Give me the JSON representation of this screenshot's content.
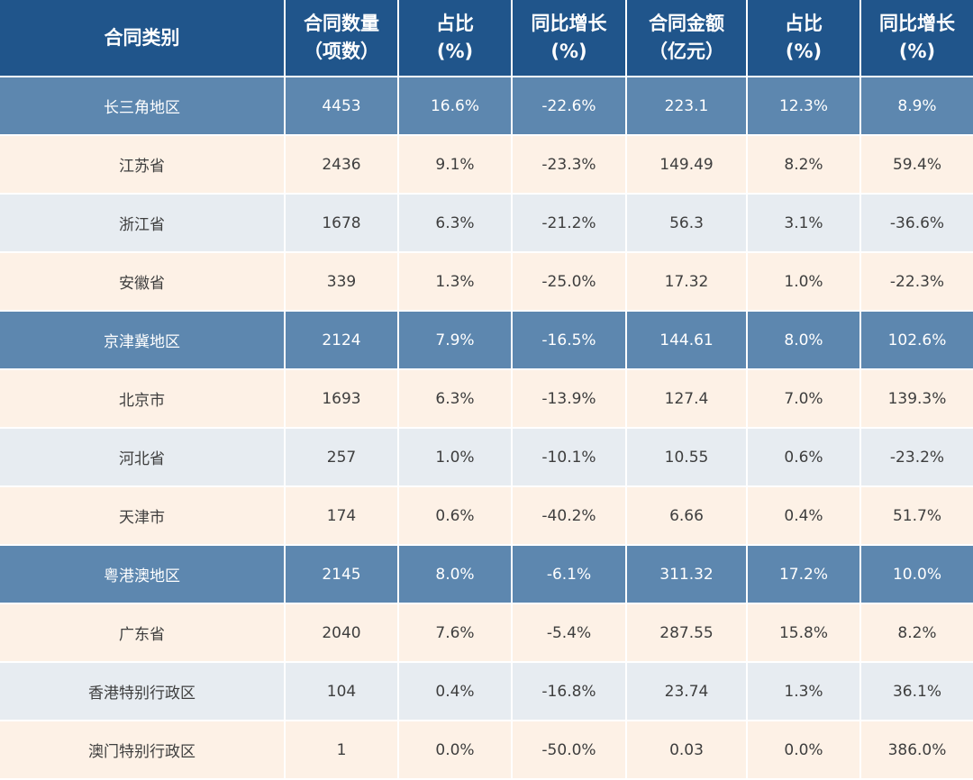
{
  "chart_data": {
    "type": "table",
    "headers": [
      [
        "合同类别"
      ],
      [
        "合同数量",
        "（项数）"
      ],
      [
        "占比",
        "(%)"
      ],
      [
        "同比增长",
        "(%)"
      ],
      [
        "合同金额",
        "（亿元）"
      ],
      [
        "占比",
        "(%)"
      ],
      [
        "同比增长",
        "(%)"
      ]
    ],
    "rows": [
      {
        "style": "region",
        "cells": [
          "长三角地区",
          "4453",
          "16.6%",
          "-22.6%",
          "223.1",
          "12.3%",
          "8.9%"
        ]
      },
      {
        "style": "warm",
        "cells": [
          "江苏省",
          "2436",
          "9.1%",
          "-23.3%",
          "149.49",
          "8.2%",
          "59.4%"
        ]
      },
      {
        "style": "cool",
        "cells": [
          "浙江省",
          "1678",
          "6.3%",
          "-21.2%",
          "56.3",
          "3.1%",
          "-36.6%"
        ]
      },
      {
        "style": "warm",
        "cells": [
          "安徽省",
          "339",
          "1.3%",
          "-25.0%",
          "17.32",
          "1.0%",
          "-22.3%"
        ]
      },
      {
        "style": "region",
        "cells": [
          "京津冀地区",
          "2124",
          "7.9%",
          "-16.5%",
          "144.61",
          "8.0%",
          "102.6%"
        ]
      },
      {
        "style": "warm",
        "cells": [
          "北京市",
          "1693",
          "6.3%",
          "-13.9%",
          "127.4",
          "7.0%",
          "139.3%"
        ]
      },
      {
        "style": "cool",
        "cells": [
          "河北省",
          "257",
          "1.0%",
          "-10.1%",
          "10.55",
          "0.6%",
          "-23.2%"
        ]
      },
      {
        "style": "warm",
        "cells": [
          "天津市",
          "174",
          "0.6%",
          "-40.2%",
          "6.66",
          "0.4%",
          "51.7%"
        ]
      },
      {
        "style": "region",
        "cells": [
          "粤港澳地区",
          "2145",
          "8.0%",
          "-6.1%",
          "311.32",
          "17.2%",
          "10.0%"
        ]
      },
      {
        "style": "warm",
        "cells": [
          "广东省",
          "2040",
          "7.6%",
          "-5.4%",
          "287.55",
          "15.8%",
          "8.2%"
        ]
      },
      {
        "style": "cool",
        "cells": [
          "香港特别行政区",
          "104",
          "0.4%",
          "-16.8%",
          "23.74",
          "1.3%",
          "36.1%"
        ]
      },
      {
        "style": "warm",
        "cells": [
          "澳门特别行政区",
          "1",
          "0.0%",
          "-50.0%",
          "0.03",
          "0.0%",
          "386.0%"
        ]
      }
    ]
  },
  "colors": {
    "header_bg": "#20558b",
    "region_bg": "#5d87af",
    "warm_row_bg": "#fdf1e6",
    "cool_row_bg": "#e7ecf1",
    "text": "#3e3e3e"
  }
}
